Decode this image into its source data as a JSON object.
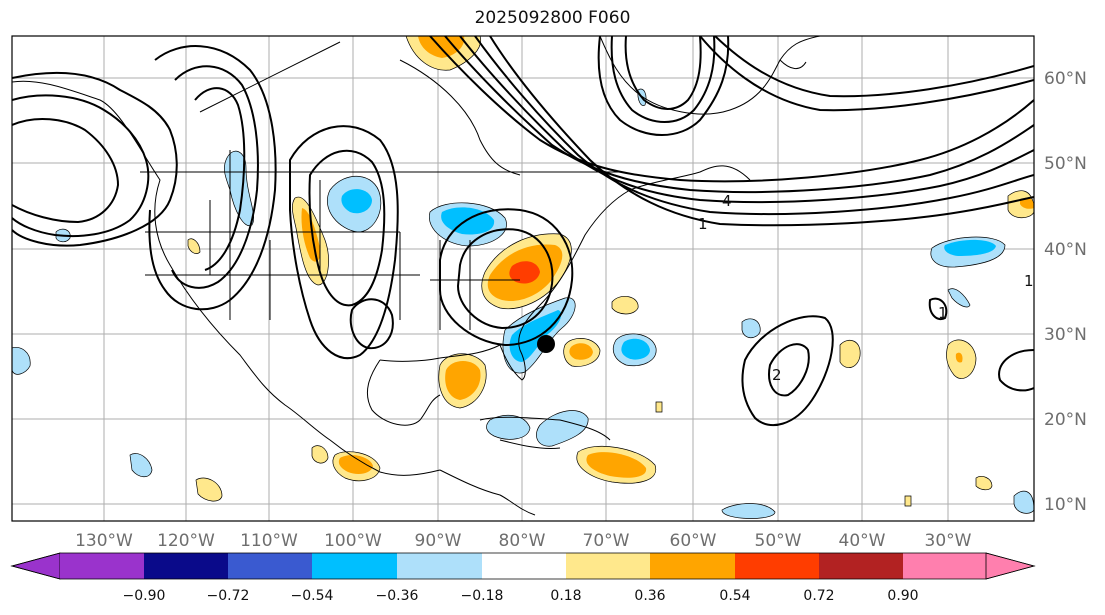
{
  "title": "2025092800 F060",
  "map": {
    "lon_labels": [
      "130°W",
      "120°W",
      "110°W",
      "100°W",
      "90°W",
      "80°W",
      "70°W",
      "60°W",
      "50°W",
      "40°W",
      "30°W"
    ],
    "lat_labels": [
      "60°N",
      "50°N",
      "40°N",
      "30°N",
      "20°N",
      "10°N"
    ],
    "contour_labels": [
      "4",
      "1",
      "1",
      "1",
      "2"
    ],
    "colors": {
      "land_outline": "#000000",
      "grid": "#9a9a9a",
      "contour": "#000000"
    }
  },
  "colorbar": {
    "ticks": [
      "−0.90",
      "−0.72",
      "−0.54",
      "−0.36",
      "−0.18",
      "0.18",
      "0.36",
      "0.54",
      "0.72",
      "0.90"
    ],
    "colors": [
      "#9a33cc",
      "#0a0a8a",
      "#3a5ad0",
      "#00bfff",
      "#aee0fa",
      "#ffffff",
      "#ffe88c",
      "#ffa500",
      "#ff3d00",
      "#b22222",
      "#ff7fae"
    ]
  },
  "markers": {
    "storm_position": "black-dot"
  }
}
